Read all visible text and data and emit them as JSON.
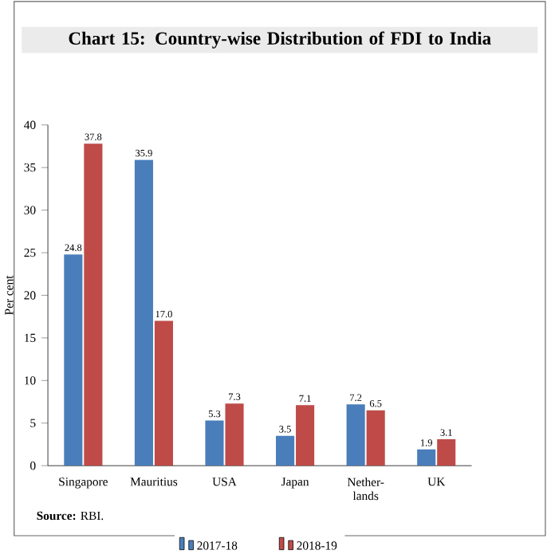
{
  "chart_data": {
    "type": "bar",
    "title": "Chart 15: Country-wise Distribution of FDI to India",
    "ylabel": "Per cent",
    "categories": [
      "Singapore",
      "Mauritius",
      "USA",
      "Japan",
      "Nether-lands",
      "UK"
    ],
    "series": [
      {
        "name": "2017-18",
        "color": "#4a7ebb",
        "values": [
          24.8,
          35.9,
          5.3,
          3.5,
          7.2,
          1.9
        ],
        "value_labels": [
          "24.8",
          "35.9",
          "5.3",
          "3.5",
          "7.2",
          "1.9"
        ]
      },
      {
        "name": "2018-19",
        "color": "#be4b48",
        "values": [
          37.8,
          17.0,
          7.3,
          7.1,
          6.5,
          3.1
        ],
        "value_labels": [
          "37.8",
          "17.0",
          "7.3",
          "7.1",
          "6.5",
          "3.1"
        ]
      }
    ],
    "ylim": [
      0,
      40
    ],
    "yticks": [
      0,
      5,
      10,
      15,
      20,
      25,
      30,
      35,
      40
    ],
    "legend": "bottom",
    "grid": false,
    "annotations": [
      "**Source:** RBI."
    ]
  }
}
